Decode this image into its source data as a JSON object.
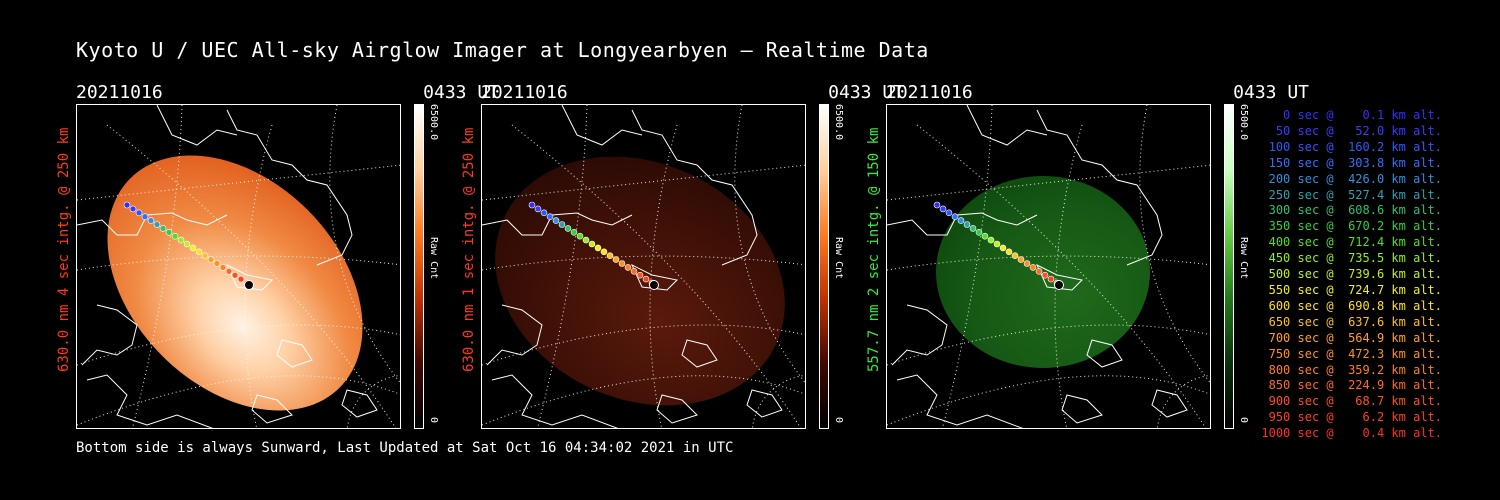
{
  "title": "Kyoto U / UEC All-sky Airglow Imager at Longyearbyen — Realtime Data",
  "panels": [
    {
      "date": "20211016",
      "time": "0433 UT",
      "side_label": "630.0 nm 4 sec intg. @ 250 km",
      "side_color": "#ff3a1a",
      "cbar_max": "6500.0",
      "cbar_unit": "Raw Cnt",
      "cbar_min": "0",
      "style": "bright-orange",
      "cbar_gradient": [
        "#ffffff",
        "#ffd0a0",
        "#ff7a20",
        "#c03000",
        "#400800",
        "#000000"
      ]
    },
    {
      "date": "20211016",
      "time": "0433 UT",
      "side_label": "630.0 nm 1 sec intg. @ 250 km",
      "side_color": "#ff3a1a",
      "cbar_max": "6500.0",
      "cbar_unit": "Raw Cnt",
      "cbar_min": "0",
      "style": "dark-red",
      "cbar_gradient": [
        "#ffffff",
        "#ffd0a0",
        "#ff7a20",
        "#c03000",
        "#400800",
        "#000000"
      ]
    },
    {
      "date": "20211016",
      "time": "0433 UT",
      "side_label": "557.7 nm 2 sec intg. @ 150 km",
      "side_color": "#33ee33",
      "cbar_max": "6500.0",
      "cbar_unit": "Raw Cnt",
      "cbar_min": "0",
      "style": "green",
      "cbar_gradient": [
        "#ffffff",
        "#c8ffc0",
        "#66cc44",
        "#227a1a",
        "#0a300a",
        "#000000"
      ]
    }
  ],
  "legend": [
    {
      "text": "   0 sec @    0.1 km alt.",
      "color": "#3030ff"
    },
    {
      "text": "  50 sec @   52.0 km alt.",
      "color": "#3a3aff"
    },
    {
      "text": " 100 sec @  160.2 km alt.",
      "color": "#2a5aff"
    },
    {
      "text": " 150 sec @  303.8 km alt.",
      "color": "#3070ff"
    },
    {
      "text": " 200 sec @  426.0 km alt.",
      "color": "#3090e0"
    },
    {
      "text": " 250 sec @  527.4 km alt.",
      "color": "#30a0b0"
    },
    {
      "text": " 300 sec @  608.6 km alt.",
      "color": "#30c070"
    },
    {
      "text": " 350 sec @  670.2 km alt.",
      "color": "#30d040"
    },
    {
      "text": " 400 sec @  712.4 km alt.",
      "color": "#50e020"
    },
    {
      "text": " 450 sec @  735.5 km alt.",
      "color": "#90f020"
    },
    {
      "text": " 500 sec @  739.6 km alt.",
      "color": "#c0f020"
    },
    {
      "text": " 550 sec @  724.7 km alt.",
      "color": "#f0f020"
    },
    {
      "text": " 600 sec @  690.8 km alt.",
      "color": "#ffe020"
    },
    {
      "text": " 650 sec @  637.6 km alt.",
      "color": "#ffc020"
    },
    {
      "text": " 700 sec @  564.9 km alt.",
      "color": "#ffa020"
    },
    {
      "text": " 750 sec @  472.3 km alt.",
      "color": "#ff9020"
    },
    {
      "text": " 800 sec @  359.2 km alt.",
      "color": "#ff8020"
    },
    {
      "text": " 850 sec @  224.9 km alt.",
      "color": "#ff6a20"
    },
    {
      "text": " 900 sec @   68.7 km alt.",
      "color": "#ff5020"
    },
    {
      "text": " 950 sec @    6.2 km alt.",
      "color": "#ff4020"
    },
    {
      "text": "1000 sec @    0.4 km alt.",
      "color": "#ff3020"
    }
  ],
  "footer": "Bottom side is always Sunward, Last Updated at Sat Oct 16 04:34:02 2021 in UTC"
}
